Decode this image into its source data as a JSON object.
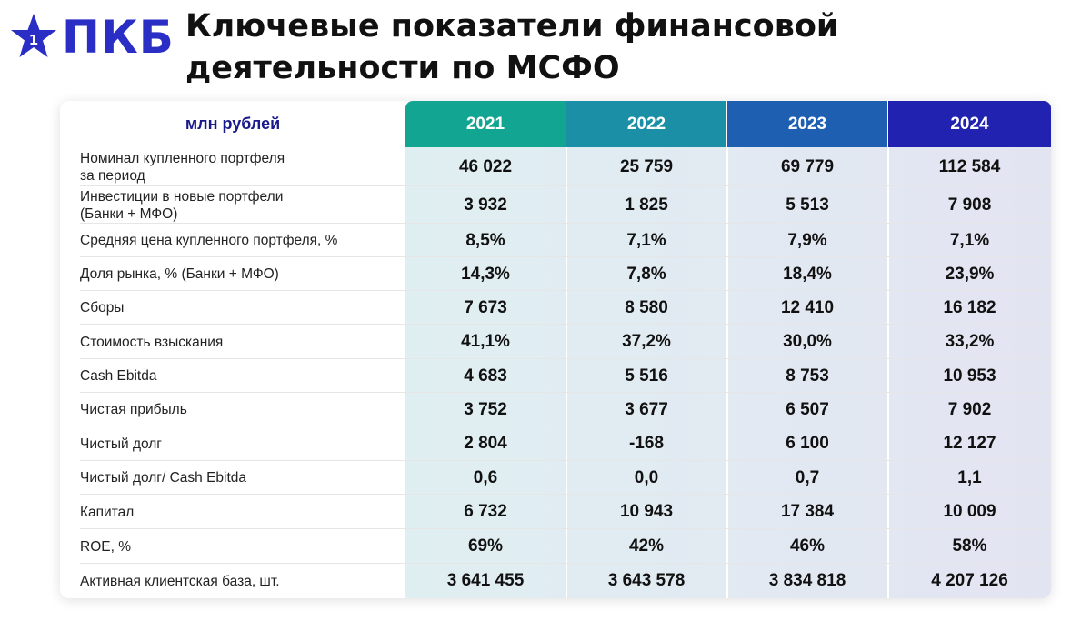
{
  "brand": {
    "logo_text": "ПКБ",
    "logo_badge": "1",
    "logo_color": "#2b2ec4"
  },
  "title": {
    "line1": "Ключевые показатели финансовой",
    "line2": "деятельности по МСФО"
  },
  "table": {
    "unit_label": "млн рублей",
    "years": [
      "2021",
      "2022",
      "2023",
      "2024"
    ],
    "header_colors": [
      "#12a592",
      "#1a8fa6",
      "#1f5fb2",
      "#2222b0"
    ],
    "rows": [
      {
        "label": "Номинал купленного портфеля\nза период",
        "values": [
          "46 022",
          "25 759",
          "69 779",
          "112 584"
        ]
      },
      {
        "label": "Инвестиции в новые портфели\n(Банки + МФО)",
        "values": [
          "3 932",
          "1 825",
          "5 513",
          "7 908"
        ]
      },
      {
        "label": "Средняя цена купленного портфеля, %",
        "values": [
          "8,5%",
          "7,1%",
          "7,9%",
          "7,1%"
        ]
      },
      {
        "label": "Доля рынка, % (Банки + МФО)",
        "values": [
          "14,3%",
          "7,8%",
          "18,4%",
          "23,9%"
        ]
      },
      {
        "label": "Сборы",
        "values": [
          "7 673",
          "8 580",
          "12 410",
          "16 182"
        ]
      },
      {
        "label": "Стоимость взыскания",
        "values": [
          "41,1%",
          "37,2%",
          "30,0%",
          "33,2%"
        ]
      },
      {
        "label": "Cash Ebitda",
        "values": [
          "4 683",
          "5 516",
          "8 753",
          "10 953"
        ]
      },
      {
        "label": "Чистая прибыль",
        "values": [
          "3 752",
          "3 677",
          "6 507",
          "7 902"
        ]
      },
      {
        "label": "Чистый долг",
        "values": [
          "2 804",
          "-168",
          "6 100",
          "12 127"
        ]
      },
      {
        "label": "Чистый долг/ Cash Ebitda",
        "values": [
          "0,6",
          "0,0",
          "0,7",
          "1,1"
        ]
      },
      {
        "label": "Капитал",
        "values": [
          "6 732",
          "10 943",
          "17 384",
          "10 009"
        ]
      },
      {
        "label": "ROE, %",
        "values": [
          "69%",
          "42%",
          "46%",
          "58%"
        ]
      },
      {
        "label": "Активная клиентская база, шт.",
        "values": [
          "3 641 455",
          "3 643 578",
          "3 834 818",
          "4 207 126"
        ]
      }
    ]
  }
}
